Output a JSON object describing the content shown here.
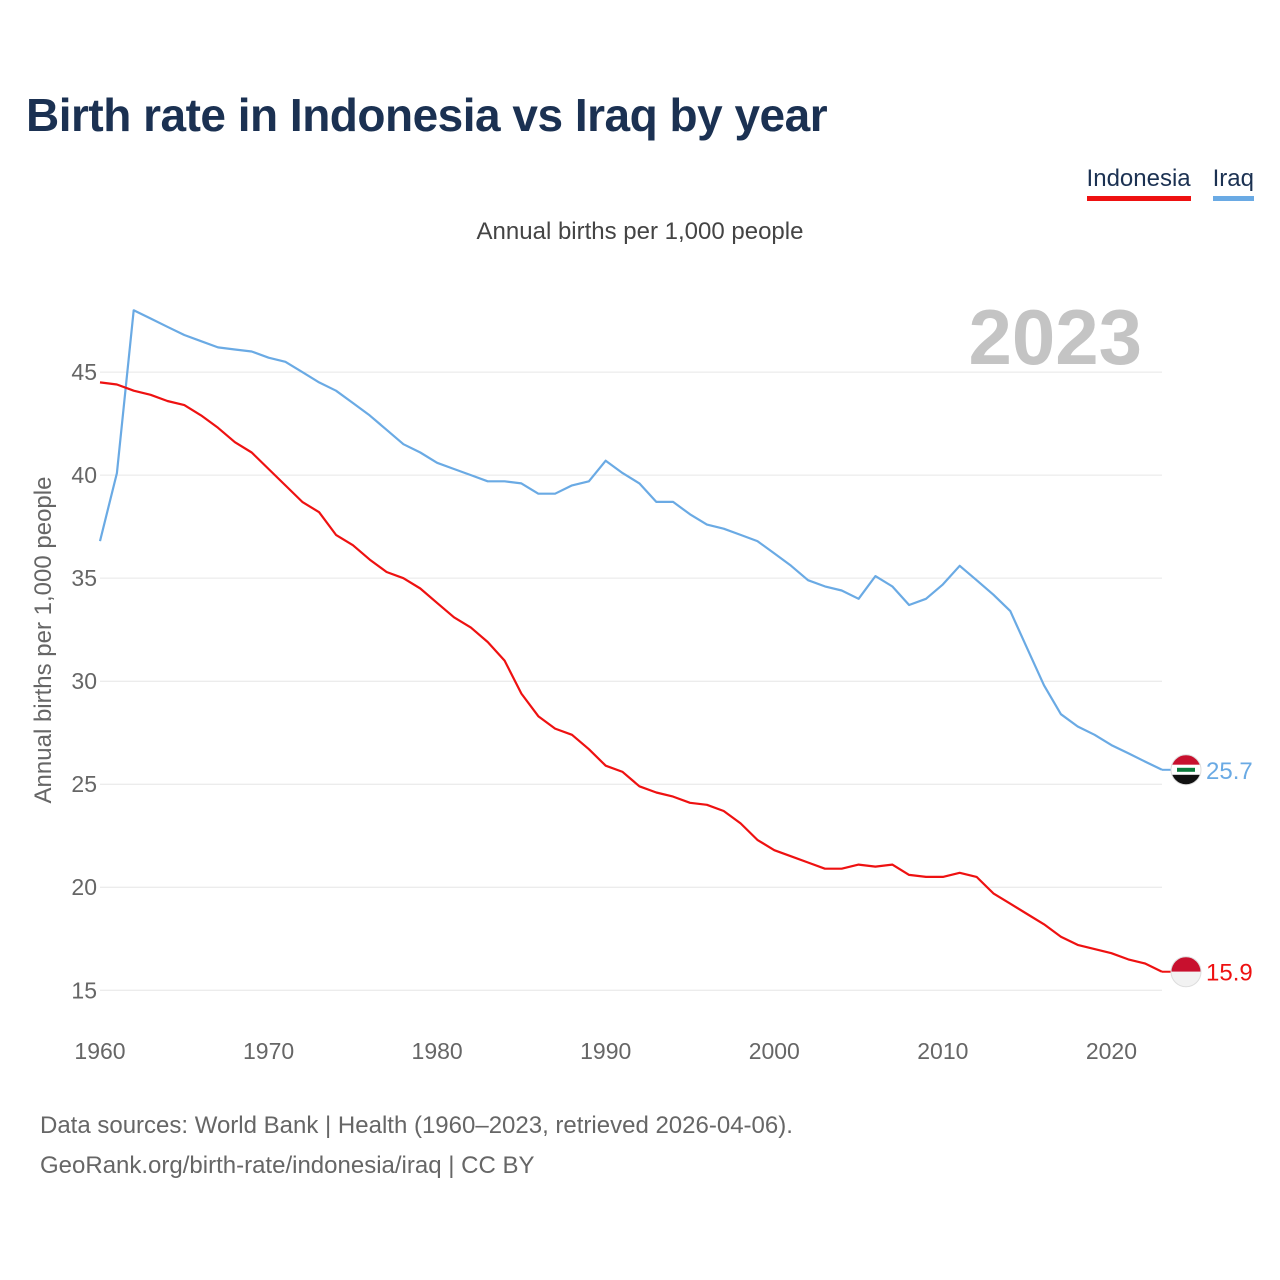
{
  "title": "Birth rate in Indonesia vs Iraq by year",
  "subtitle": "Annual births per 1,000 people",
  "year_label": "2023",
  "legend": [
    {
      "name": "Indonesia",
      "color": "#ee1111"
    },
    {
      "name": "Iraq",
      "color": "#6aaae4"
    }
  ],
  "source_line1": "Data sources: World Bank | Health (1960–2023, retrieved 2026-04-06).",
  "source_line2": "GeoRank.org/birth-rate/indonesia/iraq | CC BY",
  "chart_data": {
    "type": "line",
    "title": "Birth rate in Indonesia vs Iraq by year",
    "xlabel": "",
    "ylabel": "Annual births per 1,000 people",
    "xlim": [
      1960,
      2023
    ],
    "ylim": [
      13.8,
      48.5
    ],
    "xticks": [
      1960,
      1970,
      1980,
      1990,
      2000,
      2010,
      2020
    ],
    "yticks": [
      15,
      20,
      25,
      30,
      35,
      40,
      45
    ],
    "grid": true,
    "legend_position": "top-right",
    "x": [
      1960,
      1961,
      1962,
      1963,
      1964,
      1965,
      1966,
      1967,
      1968,
      1969,
      1970,
      1971,
      1972,
      1973,
      1974,
      1975,
      1976,
      1977,
      1978,
      1979,
      1980,
      1981,
      1982,
      1983,
      1984,
      1985,
      1986,
      1987,
      1988,
      1989,
      1990,
      1991,
      1992,
      1993,
      1994,
      1995,
      1996,
      1997,
      1998,
      1999,
      2000,
      2001,
      2002,
      2003,
      2004,
      2005,
      2006,
      2007,
      2008,
      2009,
      2010,
      2011,
      2012,
      2013,
      2014,
      2015,
      2016,
      2017,
      2018,
      2019,
      2020,
      2021,
      2022,
      2023
    ],
    "series": [
      {
        "name": "Indonesia",
        "color": "#ee1111",
        "end_label": "15.9",
        "values": [
          44.5,
          44.4,
          44.1,
          43.9,
          43.6,
          43.4,
          42.9,
          42.3,
          41.6,
          41.1,
          40.3,
          39.5,
          38.7,
          38.2,
          37.1,
          36.6,
          35.9,
          35.3,
          35.0,
          34.5,
          33.8,
          33.1,
          32.6,
          31.9,
          31.0,
          29.4,
          28.3,
          27.7,
          27.4,
          26.7,
          25.9,
          25.6,
          24.9,
          24.6,
          24.4,
          24.1,
          24.0,
          23.7,
          23.1,
          22.3,
          21.8,
          21.5,
          21.2,
          20.9,
          20.9,
          21.1,
          21.0,
          21.1,
          20.6,
          20.5,
          20.5,
          20.7,
          20.5,
          19.7,
          19.2,
          18.7,
          18.2,
          17.6,
          17.2,
          17.0,
          16.8,
          16.5,
          16.3,
          15.9
        ]
      },
      {
        "name": "Iraq",
        "color": "#6aaae4",
        "end_label": "25.7",
        "values": [
          36.8,
          40.1,
          48.0,
          47.6,
          47.2,
          46.8,
          46.5,
          46.2,
          46.1,
          46.0,
          45.7,
          45.5,
          45.0,
          44.5,
          44.1,
          43.5,
          42.9,
          42.2,
          41.5,
          41.1,
          40.6,
          40.3,
          40.0,
          39.7,
          39.7,
          39.6,
          39.1,
          39.1,
          39.5,
          39.7,
          40.7,
          40.1,
          39.6,
          38.7,
          38.7,
          38.1,
          37.6,
          37.4,
          37.1,
          36.8,
          36.2,
          35.6,
          34.9,
          34.6,
          34.4,
          34.0,
          35.1,
          34.6,
          33.7,
          34.0,
          34.7,
          35.6,
          34.9,
          34.2,
          33.4,
          31.6,
          29.8,
          28.4,
          27.8,
          27.4,
          26.9,
          26.5,
          26.1,
          25.7
        ]
      }
    ]
  }
}
